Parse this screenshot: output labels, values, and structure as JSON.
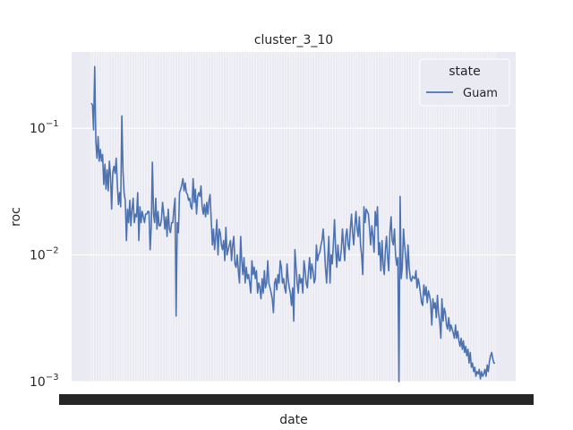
{
  "chart_data": {
    "type": "line",
    "title": "cluster_3_10",
    "xlabel": "date",
    "ylabel": "roc",
    "yscale": "log",
    "ylim": [
      0.001,
      0.4
    ],
    "y_ticks": [
      {
        "value": 0.1,
        "base": "10",
        "exp": "−1"
      },
      {
        "value": 0.01,
        "base": "10",
        "exp": "−2"
      },
      {
        "value": 0.001,
        "base": "10",
        "exp": "−3"
      }
    ],
    "x_ticks_note": "dense overlapping date tick labels (illegible)",
    "grid": true,
    "legend": {
      "title": "state",
      "placement": "top-right",
      "entries": [
        "Guam"
      ]
    },
    "colors": {
      "series": "#4c72b0",
      "background": "#eaeaf2",
      "grid": "#ffffff"
    },
    "series": [
      {
        "name": "Guam",
        "values": [
          0.158,
          0.152,
          0.097,
          0.307,
          0.078,
          0.058,
          0.086,
          0.055,
          0.068,
          0.055,
          0.062,
          0.036,
          0.052,
          0.033,
          0.047,
          0.032,
          0.055,
          0.041,
          0.023,
          0.045,
          0.05,
          0.044,
          0.058,
          0.035,
          0.025,
          0.031,
          0.024,
          0.125,
          0.046,
          0.031,
          0.027,
          0.013,
          0.023,
          0.018,
          0.027,
          0.017,
          0.023,
          0.028,
          0.018,
          0.021,
          0.02,
          0.031,
          0.013,
          0.024,
          0.018,
          0.022,
          0.02,
          0.018,
          0.021,
          0.021,
          0.022,
          0.022,
          0.011,
          0.017,
          0.054,
          0.021,
          0.018,
          0.028,
          0.016,
          0.022,
          0.017,
          0.017,
          0.019,
          0.026,
          0.021,
          0.016,
          0.02,
          0.014,
          0.023,
          0.016,
          0.015,
          0.018,
          0.018,
          0.023,
          0.028,
          0.0033,
          0.018,
          0.015,
          0.031,
          0.033,
          0.036,
          0.04,
          0.032,
          0.037,
          0.031,
          0.03,
          0.027,
          0.028,
          0.024,
          0.023,
          0.04,
          0.026,
          0.033,
          0.021,
          0.029,
          0.031,
          0.029,
          0.035,
          0.024,
          0.021,
          0.025,
          0.02,
          0.026,
          0.021,
          0.027,
          0.03,
          0.019,
          0.012,
          0.016,
          0.011,
          0.014,
          0.019,
          0.01,
          0.016,
          0.015,
          0.012,
          0.011,
          0.013,
          0.009,
          0.0165,
          0.01,
          0.011,
          0.012,
          0.013,
          0.009,
          0.012,
          0.014,
          0.0085,
          0.008,
          0.01,
          0.0075,
          0.006,
          0.014,
          0.009,
          0.007,
          0.0095,
          0.006,
          0.008,
          0.0065,
          0.007,
          0.006,
          0.005,
          0.009,
          0.007,
          0.008,
          0.0065,
          0.0075,
          0.005,
          0.006,
          0.0055,
          0.0045,
          0.0065,
          0.005,
          0.0075,
          0.0055,
          0.006,
          0.009,
          0.006,
          0.0055,
          0.005,
          0.0045,
          0.0035,
          0.006,
          0.0065,
          0.0053,
          0.007,
          0.006,
          0.009,
          0.008,
          0.006,
          0.0065,
          0.0055,
          0.005,
          0.0085,
          0.0065,
          0.0055,
          0.005,
          0.004,
          0.0055,
          0.003,
          0.011,
          0.008,
          0.006,
          0.005,
          0.007,
          0.006,
          0.0065,
          0.005,
          0.009,
          0.0075,
          0.006,
          0.0055,
          0.0075,
          0.0095,
          0.0065,
          0.0085,
          0.0075,
          0.006,
          0.0065,
          0.012,
          0.009,
          0.01,
          0.0105,
          0.012,
          0.013,
          0.016,
          0.012,
          0.008,
          0.006,
          0.009,
          0.014,
          0.006,
          0.01,
          0.0085,
          0.012,
          0.019,
          0.011,
          0.008,
          0.012,
          0.009,
          0.009,
          0.011,
          0.016,
          0.012,
          0.009,
          0.014,
          0.016,
          0.012,
          0.011,
          0.016,
          0.021,
          0.015,
          0.012,
          0.017,
          0.022,
          0.016,
          0.014,
          0.02,
          0.012,
          0.01,
          0.007,
          0.024,
          0.018,
          0.023,
          0.022,
          0.021,
          0.016,
          0.012,
          0.017,
          0.014,
          0.0105,
          0.022,
          0.017,
          0.024,
          0.01,
          0.0125,
          0.0075,
          0.013,
          0.0085,
          0.007,
          0.011,
          0.014,
          0.0095,
          0.0075,
          0.015,
          0.02,
          0.013,
          0.012,
          0.016,
          0.01,
          0.0083,
          0.0095,
          0.0008,
          0.029,
          0.0065,
          0.008,
          0.016,
          0.012,
          0.0095,
          0.0065,
          0.012,
          0.008,
          0.0065,
          0.0062,
          0.0068,
          0.0066,
          0.0065,
          0.0075,
          0.0055,
          0.0065,
          0.0058,
          0.005,
          0.0042,
          0.004,
          0.0058,
          0.0048,
          0.0056,
          0.0042,
          0.0052,
          0.0048,
          0.0042,
          0.0028,
          0.0045,
          0.0038,
          0.0042,
          0.0032,
          0.0048,
          0.0035,
          0.003,
          0.0022,
          0.0045,
          0.003,
          0.0038,
          0.0035,
          0.0028,
          0.0026,
          0.0032,
          0.0025,
          0.0028,
          0.0026,
          0.0024,
          0.0022,
          0.0028,
          0.0022,
          0.0025,
          0.0021,
          0.0019,
          0.0022,
          0.0018,
          0.0021,
          0.0017,
          0.0019,
          0.0016,
          0.0018,
          0.0014,
          0.0017,
          0.0013,
          0.0014,
          0.0012,
          0.0013,
          0.0011,
          0.0012,
          0.00115,
          0.00125,
          0.00105,
          0.0012,
          0.0011,
          0.00115,
          0.00125,
          0.0011,
          0.00135,
          0.0012,
          0.00145,
          0.0016,
          0.0017,
          0.0015,
          0.0014,
          0.0014
        ]
      }
    ]
  }
}
